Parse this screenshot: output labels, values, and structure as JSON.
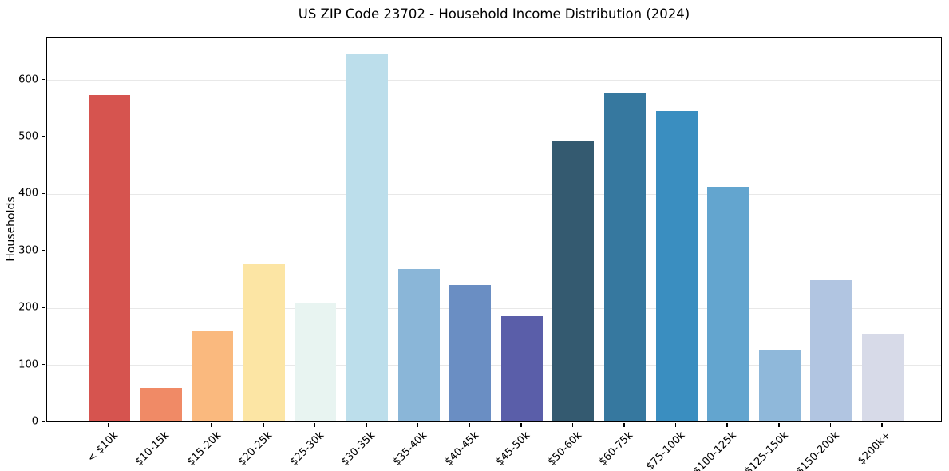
{
  "chart_data": {
    "type": "bar",
    "title": "US ZIP Code 23702 - Household Income Distribution (2024)",
    "xlabel": "",
    "ylabel": "Households",
    "categories": [
      "< $10k",
      "$10-15k",
      "$15-20k",
      "$20-25k",
      "$25-30k",
      "$30-35k",
      "$35-40k",
      "$40-45k",
      "$45-50k",
      "$50-60k",
      "$60-75k",
      "$75-100k",
      "$100-125k",
      "$125-150k",
      "$150-200k",
      "$200k+"
    ],
    "values": [
      572,
      58,
      157,
      274,
      206,
      643,
      266,
      238,
      183,
      492,
      576,
      544,
      411,
      123,
      246,
      151
    ],
    "bar_colors": [
      "#d6544f",
      "#f08a66",
      "#fab97e",
      "#fce5a4",
      "#e8f4f1",
      "#bcdeeb",
      "#8ab6d8",
      "#6a8ec3",
      "#5a5ea9",
      "#345a70",
      "#36789f",
      "#3a8ec0",
      "#63a5cf",
      "#8fb8da",
      "#b1c5e1",
      "#d7dae8"
    ],
    "yticks": [
      0,
      100,
      200,
      300,
      400,
      500,
      600
    ],
    "ylim": [
      0,
      675
    ],
    "grid": "horizontal-only",
    "legend": "none",
    "background_color": "#ffffff",
    "grid_color": "#e8e8e8",
    "spine_color": "#000000"
  }
}
